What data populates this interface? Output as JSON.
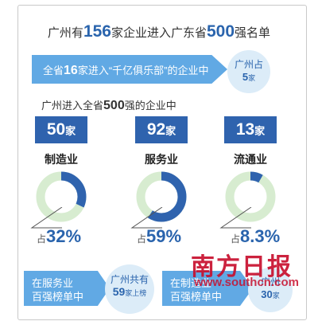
{
  "headline": {
    "pre": "广州有",
    "n1": "156",
    "mid": "家企业进入广东省",
    "n2": "500",
    "post": "强名单"
  },
  "top_band": {
    "pre": "全省",
    "n": "16",
    "post": "家进入“千亿俱乐部”的企业中"
  },
  "top_badge": {
    "line1": "广州占",
    "value": "5",
    "unit": "家"
  },
  "subhead": {
    "pre": "广州进入全省",
    "n": "500",
    "post": "强的企业中"
  },
  "sectors": [
    {
      "count": "50",
      "unit": "家",
      "name": "制造业",
      "share_prefix": "占",
      "share_label": "32%",
      "share_value": 32
    },
    {
      "count": "92",
      "unit": "家",
      "name": "服务业",
      "share_prefix": "占",
      "share_label": "59%",
      "share_value": 59
    },
    {
      "count": "13",
      "unit": "家",
      "name": "流通业",
      "share_prefix": "占",
      "share_label": "8.3%",
      "share_value": 8.3
    }
  ],
  "bottom_left_band": {
    "line1": "在服务业",
    "line2": "百强榜单中"
  },
  "bottom_left_badge": {
    "line1": "广州共有",
    "value": "59",
    "unit": "家上榜"
  },
  "bottom_right_band": {
    "line1": "在制造业",
    "line2": "百强榜单中"
  },
  "bottom_right_badge": {
    "line1": "广州",
    "value": "30",
    "unit": "家"
  },
  "watermark": {
    "logo": "南方日报",
    "url": "www.southcn.com"
  },
  "colors": {
    "accent_dark": "#2f63ae",
    "accent_light": "#61a9e4",
    "ring_track": "#d7ecd0",
    "badge_bg": "#dcecf8",
    "watermark": "#c8102e"
  }
}
